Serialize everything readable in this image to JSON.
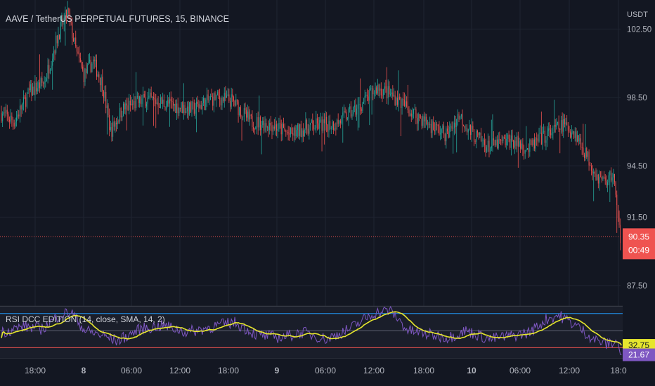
{
  "header": {
    "symbol_title": "AAVE / TetherUS PERPETUAL FUTURES, 15, BINANCE",
    "currency": "USDT"
  },
  "colors": {
    "background": "#131722",
    "grid": "#1f2431",
    "up_candle": "#26a69a",
    "down_candle": "#ef5350",
    "axis_text": "#b2b5be",
    "price_badge": "#ef5350",
    "rsi_line": "#7e57c2",
    "rsi_sma": "#e6e62e",
    "rsi_band_upper": "#2196f3",
    "rsi_band_lower": "#ef5350"
  },
  "chart_data": [
    {
      "type": "candlestick",
      "title": "AAVE / TetherUS PERPETUAL FUTURES, 15, BINANCE",
      "y_axis_unit": "USDT",
      "y_ticks": [
        102.5,
        98.5,
        94.5,
        91.5,
        87.5
      ],
      "ylim": [
        86.3,
        104.2
      ],
      "x_ticks": [
        "18:00",
        "8",
        "06:00",
        "12:00",
        "18:00",
        "9",
        "06:00",
        "12:00",
        "18:00",
        "10",
        "06:00",
        "12:00",
        "18:0"
      ],
      "last_price": "90.35",
      "countdown": "00:49",
      "grid": true,
      "trend_anchors": [
        [
          0,
          97.6
        ],
        [
          12,
          97.1
        ],
        [
          25,
          98.8
        ],
        [
          38,
          99.4
        ],
        [
          50,
          102.2
        ],
        [
          58,
          103.5
        ],
        [
          66,
          101.0
        ],
        [
          72,
          99.8
        ],
        [
          80,
          100.6
        ],
        [
          88,
          99.3
        ],
        [
          95,
          96.5
        ],
        [
          105,
          97.8
        ],
        [
          125,
          98.4
        ],
        [
          145,
          98.1
        ],
        [
          165,
          97.8
        ],
        [
          185,
          98.5
        ],
        [
          200,
          98.3
        ],
        [
          215,
          97.1
        ],
        [
          235,
          96.9
        ],
        [
          250,
          96.3
        ],
        [
          265,
          96.8
        ],
        [
          290,
          97.0
        ],
        [
          310,
          98.0
        ],
        [
          325,
          99.1
        ],
        [
          340,
          98.5
        ],
        [
          355,
          97.6
        ],
        [
          370,
          96.9
        ],
        [
          385,
          96.3
        ],
        [
          395,
          97.5
        ],
        [
          405,
          96.5
        ],
        [
          420,
          95.6
        ],
        [
          440,
          96.0
        ],
        [
          455,
          95.5
        ],
        [
          470,
          96.3
        ],
        [
          485,
          96.9
        ],
        [
          495,
          96.4
        ],
        [
          505,
          95.1
        ],
        [
          515,
          93.8
        ],
        [
          522,
          93.6
        ],
        [
          528,
          94.1
        ],
        [
          532,
          91.2
        ],
        [
          534,
          90.35
        ]
      ]
    },
    {
      "type": "line",
      "title": "RSI DCC EDITION (14, close, SMA, 14, 2)",
      "series": [
        {
          "name": "RSI",
          "last_value": "21.67"
        },
        {
          "name": "SMA",
          "last_value": "32.75"
        }
      ],
      "levels": [
        70,
        50,
        30
      ],
      "ylim": [
        18,
        78
      ],
      "rsi_anchors": [
        [
          0,
          48
        ],
        [
          20,
          55
        ],
        [
          35,
          52
        ],
        [
          50,
          68
        ],
        [
          60,
          72
        ],
        [
          72,
          50
        ],
        [
          85,
          45
        ],
        [
          100,
          38
        ],
        [
          120,
          52
        ],
        [
          140,
          56
        ],
        [
          160,
          48
        ],
        [
          180,
          54
        ],
        [
          200,
          60
        ],
        [
          220,
          45
        ],
        [
          240,
          42
        ],
        [
          260,
          48
        ],
        [
          280,
          40
        ],
        [
          300,
          52
        ],
        [
          320,
          70
        ],
        [
          335,
          74
        ],
        [
          350,
          50
        ],
        [
          370,
          45
        ],
        [
          385,
          42
        ],
        [
          400,
          50
        ],
        [
          420,
          40
        ],
        [
          440,
          44
        ],
        [
          455,
          48
        ],
        [
          470,
          64
        ],
        [
          480,
          68
        ],
        [
          495,
          56
        ],
        [
          510,
          40
        ],
        [
          522,
          34
        ],
        [
          530,
          38
        ],
        [
          534,
          21.67
        ]
      ]
    }
  ]
}
